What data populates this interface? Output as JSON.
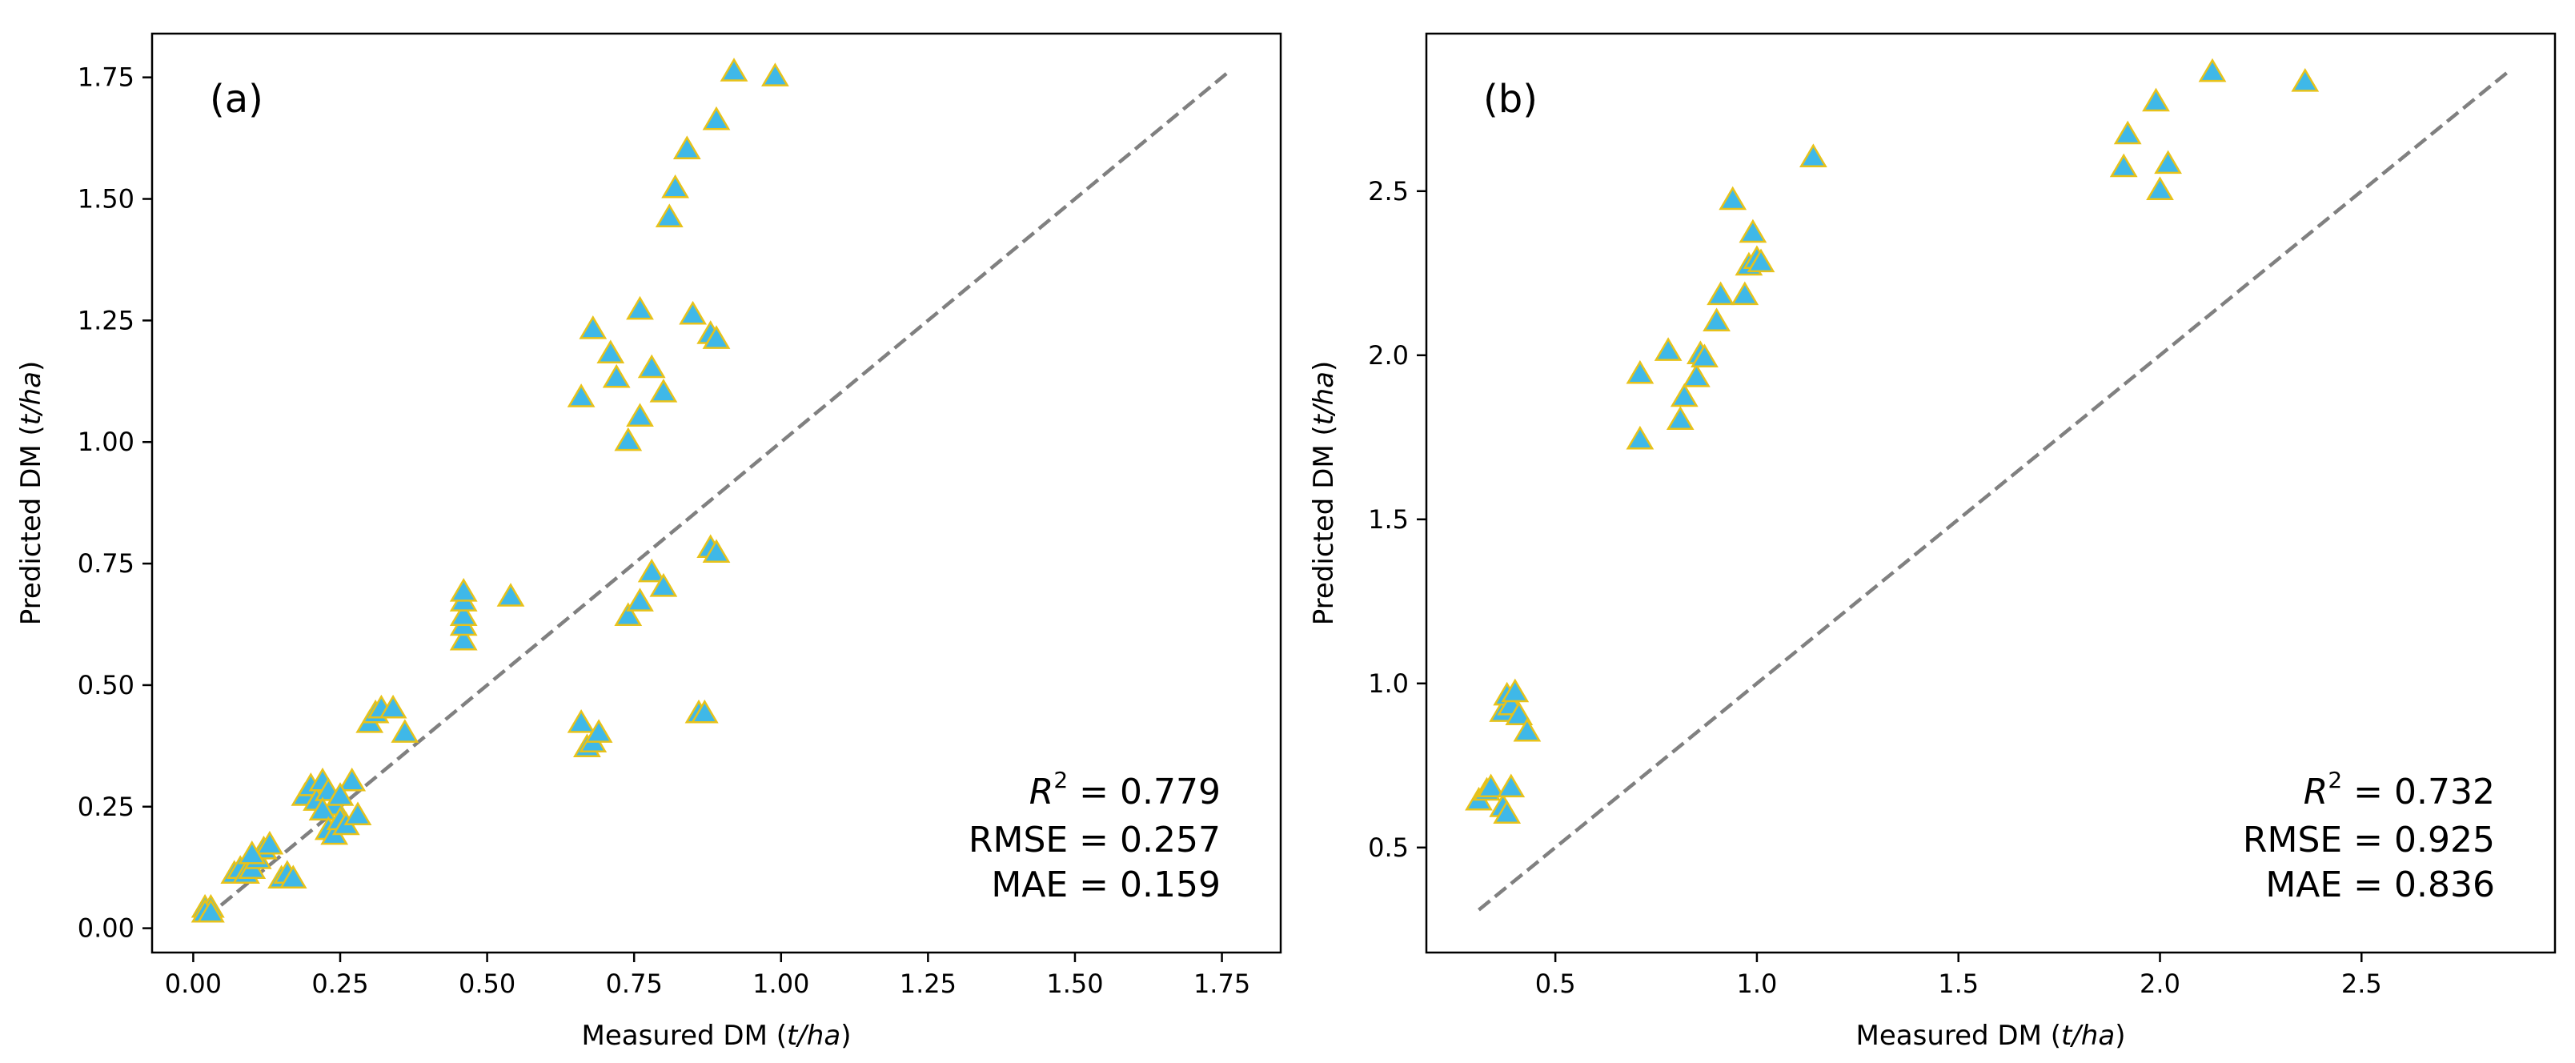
{
  "colors": {
    "marker_fill": "#3fb8e8",
    "marker_edge": "#e8c21a",
    "identity_line": "#808080",
    "axes": "#000000"
  },
  "chart_data": [
    {
      "type": "scatter",
      "panel_label": "(a)",
      "xlabel_prefix": "Measured DM (",
      "xlabel_unit": "t/ha",
      "xlabel_suffix": ")",
      "ylabel_prefix": "Predicted DM (",
      "ylabel_unit": "t/ha",
      "ylabel_suffix": ")",
      "xlim": [
        -0.07,
        1.85
      ],
      "ylim": [
        -0.05,
        1.84
      ],
      "xticks": [
        0.0,
        0.25,
        0.5,
        0.75,
        1.0,
        1.25,
        1.5,
        1.75
      ],
      "xtick_labels": [
        "0.00",
        "0.25",
        "0.50",
        "0.75",
        "1.00",
        "1.25",
        "1.50",
        "1.75"
      ],
      "yticks": [
        0.0,
        0.25,
        0.5,
        0.75,
        1.0,
        1.25,
        1.5,
        1.75
      ],
      "ytick_labels": [
        "0.00",
        "0.25",
        "0.50",
        "0.75",
        "1.00",
        "1.25",
        "1.50",
        "1.75"
      ],
      "identity_line": [
        [
          0.02,
          0.02
        ],
        [
          1.76,
          1.76
        ]
      ],
      "marker": "triangle",
      "stats": {
        "r2_symbol": "R",
        "r2_sup": "2",
        "r2_value": " = 0.779",
        "rmse": "RMSE = 0.257",
        "mae": "MAE = 0.159"
      },
      "points": [
        [
          0.02,
          0.04
        ],
        [
          0.03,
          0.04
        ],
        [
          0.02,
          0.03
        ],
        [
          0.03,
          0.03
        ],
        [
          0.07,
          0.11
        ],
        [
          0.08,
          0.12
        ],
        [
          0.09,
          0.11
        ],
        [
          0.1,
          0.12
        ],
        [
          0.11,
          0.14
        ],
        [
          0.12,
          0.16
        ],
        [
          0.13,
          0.17
        ],
        [
          0.1,
          0.15
        ],
        [
          0.15,
          0.1
        ],
        [
          0.16,
          0.11
        ],
        [
          0.17,
          0.1
        ],
        [
          0.19,
          0.27
        ],
        [
          0.2,
          0.29
        ],
        [
          0.21,
          0.26
        ],
        [
          0.22,
          0.3
        ],
        [
          0.23,
          0.28
        ],
        [
          0.24,
          0.25
        ],
        [
          0.22,
          0.24
        ],
        [
          0.23,
          0.2
        ],
        [
          0.24,
          0.19
        ],
        [
          0.25,
          0.22
        ],
        [
          0.26,
          0.21
        ],
        [
          0.27,
          0.3
        ],
        [
          0.28,
          0.23
        ],
        [
          0.25,
          0.27
        ],
        [
          0.3,
          0.42
        ],
        [
          0.31,
          0.44
        ],
        [
          0.32,
          0.45
        ],
        [
          0.34,
          0.45
        ],
        [
          0.36,
          0.4
        ],
        [
          0.46,
          0.59
        ],
        [
          0.46,
          0.62
        ],
        [
          0.46,
          0.64
        ],
        [
          0.46,
          0.67
        ],
        [
          0.46,
          0.69
        ],
        [
          0.54,
          0.68
        ],
        [
          0.66,
          0.42
        ],
        [
          0.67,
          0.37
        ],
        [
          0.68,
          0.38
        ],
        [
          0.69,
          0.4
        ],
        [
          0.74,
          0.64
        ],
        [
          0.76,
          0.67
        ],
        [
          0.78,
          0.73
        ],
        [
          0.8,
          0.7
        ],
        [
          0.86,
          0.44
        ],
        [
          0.87,
          0.44
        ],
        [
          0.88,
          0.78
        ],
        [
          0.89,
          0.77
        ],
        [
          0.66,
          1.09
        ],
        [
          0.68,
          1.23
        ],
        [
          0.71,
          1.18
        ],
        [
          0.72,
          1.13
        ],
        [
          0.74,
          1.0
        ],
        [
          0.76,
          1.05
        ],
        [
          0.76,
          1.27
        ],
        [
          0.78,
          1.15
        ],
        [
          0.8,
          1.1
        ],
        [
          0.85,
          1.26
        ],
        [
          0.88,
          1.22
        ],
        [
          0.89,
          1.21
        ],
        [
          0.81,
          1.46
        ],
        [
          0.82,
          1.52
        ],
        [
          0.84,
          1.6
        ],
        [
          0.89,
          1.66
        ],
        [
          0.92,
          1.76
        ],
        [
          0.99,
          1.75
        ]
      ]
    },
    {
      "type": "scatter",
      "panel_label": "(b)",
      "xlabel_prefix": "Measured DM (",
      "xlabel_unit": "t/ha",
      "xlabel_suffix": ")",
      "ylabel_prefix": "Predicted DM (",
      "ylabel_unit": "t/ha",
      "ylabel_suffix": ")",
      "xlim": [
        0.18,
        2.98
      ],
      "ylim": [
        0.18,
        2.98
      ],
      "xticks": [
        0.5,
        1.0,
        1.5,
        2.0,
        2.5
      ],
      "xtick_labels": [
        "0.5",
        "1.0",
        "1.5",
        "2.0",
        "2.5"
      ],
      "yticks": [
        0.5,
        1.0,
        1.5,
        2.0,
        2.5
      ],
      "ytick_labels": [
        "0.5",
        "1.0",
        "1.5",
        "2.0",
        "2.5"
      ],
      "identity_line": [
        [
          0.31,
          0.31
        ],
        [
          2.86,
          2.86
        ]
      ],
      "marker": "triangle",
      "stats": {
        "r2_symbol": "R",
        "r2_sup": "2",
        "r2_value": " = 0.732",
        "rmse": "RMSE = 0.925",
        "mae": "MAE = 0.836"
      },
      "points": [
        [
          0.31,
          0.64
        ],
        [
          0.33,
          0.67
        ],
        [
          0.34,
          0.68
        ],
        [
          0.37,
          0.62
        ],
        [
          0.38,
          0.6
        ],
        [
          0.39,
          0.68
        ],
        [
          0.37,
          0.91
        ],
        [
          0.38,
          0.96
        ],
        [
          0.39,
          0.93
        ],
        [
          0.4,
          0.97
        ],
        [
          0.41,
          0.9
        ],
        [
          0.43,
          0.85
        ],
        [
          0.71,
          1.74
        ],
        [
          0.71,
          1.94
        ],
        [
          0.78,
          2.01
        ],
        [
          0.81,
          1.8
        ],
        [
          0.82,
          1.87
        ],
        [
          0.85,
          1.93
        ],
        [
          0.86,
          2.0
        ],
        [
          0.87,
          1.99
        ],
        [
          0.9,
          2.1
        ],
        [
          0.91,
          2.18
        ],
        [
          0.94,
          2.47
        ],
        [
          0.97,
          2.18
        ],
        [
          0.98,
          2.27
        ],
        [
          0.99,
          2.37
        ],
        [
          1.0,
          2.29
        ],
        [
          1.01,
          2.28
        ],
        [
          1.14,
          2.6
        ],
        [
          1.91,
          2.57
        ],
        [
          1.92,
          2.67
        ],
        [
          1.99,
          2.77
        ],
        [
          2.0,
          2.5
        ],
        [
          2.02,
          2.58
        ],
        [
          2.13,
          2.86
        ],
        [
          2.36,
          2.83
        ]
      ]
    }
  ]
}
